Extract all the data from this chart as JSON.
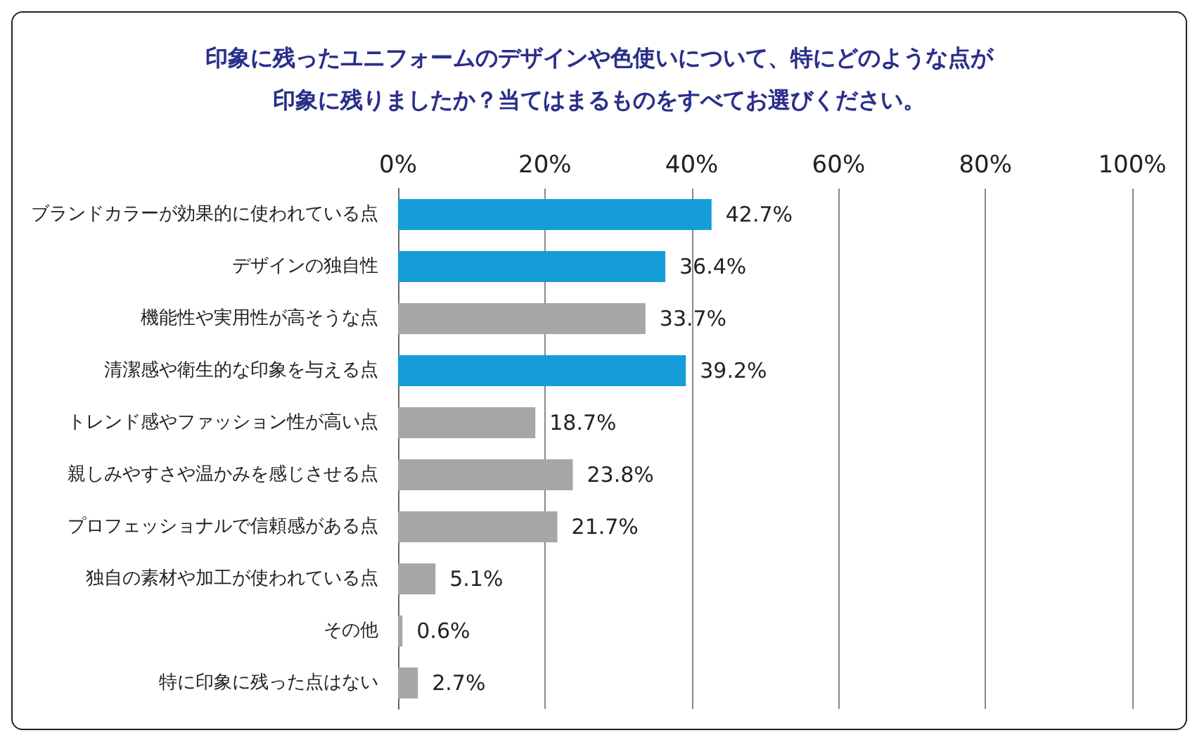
{
  "chart_data": {
    "type": "bar",
    "orientation": "horizontal",
    "title": "印象に残ったユニフォームのデザインや色使いについて、特にどのような点が印象に残りましたか？当てはまるものをすべてお選びください。",
    "categories": [
      "ブランドカラーが効果的に使われている点",
      "デザインの独自性",
      "機能性や実用性が高そうな点",
      "清潔感や衛生的な印象を与える点",
      "トレンド感やファッション性が高い点",
      "親しみやすさや温かみを感じさせる点",
      "プロフェッショナルで信頼感がある点",
      "独自の素材や加工が使われている点",
      "その他",
      "特に印象に残った点はない"
    ],
    "values": [
      42.7,
      36.4,
      33.7,
      39.2,
      18.7,
      23.8,
      21.7,
      5.1,
      0.6,
      2.7
    ],
    "colors": [
      "#149dd9",
      "#149dd9",
      "#a6a6a6",
      "#149dd9",
      "#a6a6a6",
      "#a6a6a6",
      "#a6a6a6",
      "#a6a6a6",
      "#a6a6a6",
      "#a6a6a6"
    ],
    "value_labels": [
      "42.7%",
      "36.4%",
      "33.7%",
      "39.2%",
      "18.7%",
      "23.8%",
      "21.7%",
      "5.1%",
      "0.6%",
      "2.7%"
    ],
    "xlim": [
      0,
      100
    ],
    "xticks": [
      {
        "value": 0,
        "label": "0%"
      },
      {
        "value": 20,
        "label": "20%"
      },
      {
        "value": 40,
        "label": "40%"
      },
      {
        "value": 60,
        "label": "60%"
      },
      {
        "value": 80,
        "label": "80%"
      },
      {
        "value": 100,
        "label": "100%"
      }
    ],
    "grid": "x"
  }
}
